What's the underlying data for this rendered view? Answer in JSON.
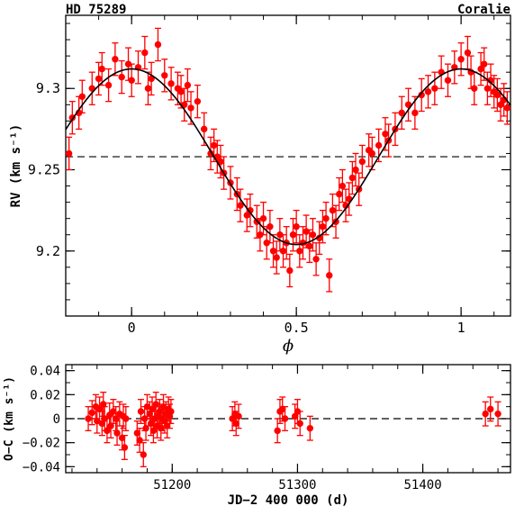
{
  "header": {
    "left": "HD 75289",
    "right": "Coralie"
  },
  "chart_data": [
    {
      "type": "scatter",
      "panel": "radial-velocity-phase",
      "xlabel": "ϕ",
      "ylabel": "RV (km s⁻¹)",
      "xlim": [
        -0.2,
        1.15
      ],
      "ylim": [
        9.16,
        9.345
      ],
      "xticks": [
        0,
        0.5,
        1
      ],
      "xtick_labels": [
        "0",
        "0.5",
        "1"
      ],
      "yticks": [
        9.2,
        9.25,
        9.3
      ],
      "ytick_labels": [
        "9.2",
        "9.25",
        "9.3"
      ],
      "grid": false,
      "colors": {
        "points": "#ff0000",
        "model": "#000000"
      },
      "model": {
        "type": "sinusoid",
        "mean": 9.258,
        "amplitude": 0.054,
        "phase_of_max": 0.0
      },
      "reference_line": {
        "y": 9.258,
        "style": "dashed"
      },
      "series": [
        {
          "points": [
            [
              -0.19,
              9.26,
              0.01
            ],
            [
              -0.18,
              9.282,
              0.01
            ],
            [
              -0.16,
              9.285,
              0.01
            ],
            [
              -0.15,
              9.295,
              0.01
            ],
            [
              -0.12,
              9.3,
              0.01
            ],
            [
              -0.1,
              9.306,
              0.01
            ],
            [
              -0.09,
              9.312,
              0.01
            ],
            [
              -0.07,
              9.302,
              0.01
            ],
            [
              -0.05,
              9.318,
              0.01
            ],
            [
              -0.03,
              9.307,
              0.01
            ],
            [
              -0.01,
              9.315,
              0.01
            ],
            [
              0.0,
              9.305,
              0.01
            ],
            [
              0.02,
              9.313,
              0.01
            ],
            [
              0.04,
              9.322,
              0.01
            ],
            [
              0.05,
              9.3,
              0.01
            ],
            [
              0.06,
              9.306,
              0.01
            ],
            [
              0.08,
              9.327,
              0.01
            ],
            [
              0.1,
              9.308,
              0.01
            ],
            [
              0.12,
              9.303,
              0.01
            ],
            [
              0.14,
              9.3,
              0.01
            ],
            [
              0.15,
              9.298,
              0.01
            ],
            [
              0.16,
              9.29,
              0.01
            ],
            [
              0.17,
              9.302,
              0.01
            ],
            [
              0.18,
              9.288,
              0.01
            ],
            [
              0.2,
              9.292,
              0.01
            ],
            [
              0.22,
              9.275,
              0.01
            ],
            [
              0.24,
              9.26,
              0.01
            ],
            [
              0.25,
              9.265,
              0.01
            ],
            [
              0.26,
              9.258,
              0.01
            ],
            [
              0.27,
              9.255,
              0.01
            ],
            [
              0.28,
              9.248,
              0.01
            ],
            [
              0.3,
              9.242,
              0.01
            ],
            [
              0.32,
              9.235,
              0.01
            ],
            [
              0.33,
              9.228,
              0.01
            ],
            [
              0.35,
              9.222,
              0.01
            ],
            [
              0.36,
              9.225,
              0.01
            ],
            [
              0.38,
              9.218,
              0.01
            ],
            [
              0.39,
              9.21,
              0.01
            ],
            [
              0.4,
              9.22,
              0.01
            ],
            [
              0.41,
              9.205,
              0.01
            ],
            [
              0.42,
              9.215,
              0.01
            ],
            [
              0.43,
              9.2,
              0.01
            ],
            [
              0.44,
              9.196,
              0.01
            ],
            [
              0.45,
              9.21,
              0.01
            ],
            [
              0.46,
              9.2,
              0.01
            ],
            [
              0.47,
              9.205,
              0.01
            ],
            [
              0.48,
              9.188,
              0.01
            ],
            [
              0.49,
              9.21,
              0.01
            ],
            [
              0.5,
              9.215,
              0.01
            ],
            [
              0.51,
              9.2,
              0.01
            ],
            [
              0.52,
              9.205,
              0.01
            ],
            [
              0.53,
              9.212,
              0.01
            ],
            [
              0.54,
              9.203,
              0.01
            ],
            [
              0.55,
              9.21,
              0.01
            ],
            [
              0.56,
              9.195,
              0.01
            ],
            [
              0.57,
              9.208,
              0.01
            ],
            [
              0.58,
              9.215,
              0.01
            ],
            [
              0.59,
              9.22,
              0.01
            ],
            [
              0.6,
              9.185,
              0.01
            ],
            [
              0.61,
              9.225,
              0.01
            ],
            [
              0.62,
              9.218,
              0.01
            ],
            [
              0.63,
              9.235,
              0.01
            ],
            [
              0.64,
              9.24,
              0.01
            ],
            [
              0.65,
              9.228,
              0.01
            ],
            [
              0.66,
              9.232,
              0.01
            ],
            [
              0.67,
              9.245,
              0.01
            ],
            [
              0.68,
              9.25,
              0.01
            ],
            [
              0.69,
              9.238,
              0.01
            ],
            [
              0.7,
              9.255,
              0.01
            ],
            [
              0.72,
              9.262,
              0.01
            ],
            [
              0.73,
              9.26,
              0.01
            ],
            [
              0.75,
              9.265,
              0.01
            ],
            [
              0.77,
              9.272,
              0.01
            ],
            [
              0.78,
              9.268,
              0.01
            ],
            [
              0.8,
              9.275,
              0.01
            ],
            [
              0.82,
              9.285,
              0.01
            ],
            [
              0.84,
              9.29,
              0.01
            ],
            [
              0.86,
              9.285,
              0.01
            ],
            [
              0.88,
              9.296,
              0.01
            ],
            [
              0.9,
              9.298,
              0.01
            ],
            [
              0.92,
              9.3,
              0.01
            ],
            [
              0.94,
              9.31,
              0.01
            ],
            [
              0.96,
              9.305,
              0.01
            ],
            [
              0.98,
              9.313,
              0.01
            ],
            [
              1.0,
              9.318,
              0.01
            ],
            [
              1.02,
              9.322,
              0.01
            ],
            [
              1.03,
              9.31,
              0.01
            ],
            [
              1.04,
              9.3,
              0.01
            ],
            [
              1.06,
              9.312,
              0.01
            ],
            [
              1.07,
              9.315,
              0.01
            ],
            [
              1.08,
              9.3,
              0.01
            ],
            [
              1.09,
              9.305,
              0.01
            ],
            [
              1.1,
              9.298,
              0.01
            ],
            [
              1.11,
              9.296,
              0.01
            ],
            [
              1.12,
              9.29,
              0.01
            ],
            [
              1.13,
              9.293,
              0.01
            ],
            [
              1.14,
              9.288,
              0.01
            ]
          ]
        }
      ]
    },
    {
      "type": "scatter",
      "panel": "residuals-time",
      "xlabel": "JD−2 400 000 (d)",
      "ylabel": "O−C (km s⁻¹)",
      "xlim": [
        51115,
        51470
      ],
      "ylim": [
        -0.045,
        0.045
      ],
      "xticks": [
        51200,
        51300,
        51400
      ],
      "xtick_labels": [
        "51200",
        "51300",
        "51400"
      ],
      "yticks": [
        -0.04,
        -0.02,
        0,
        0.02,
        0.04
      ],
      "ytick_labels": [
        "−0.04",
        "−0.02",
        "0",
        "0.02",
        "0.04"
      ],
      "grid": false,
      "colors": {
        "points": "#ff0000"
      },
      "reference_line": {
        "y": 0,
        "style": "dashed"
      },
      "series": [
        {
          "points": [
            [
              51133,
              0.0,
              0.01
            ],
            [
              51136,
              0.005,
              0.01
            ],
            [
              51139,
              0.01,
              0.01
            ],
            [
              51140,
              -0.002,
              0.01
            ],
            [
              51142,
              0.008,
              0.01
            ],
            [
              51144,
              -0.004,
              0.01
            ],
            [
              51145,
              0.012,
              0.01
            ],
            [
              51146,
              0.0,
              0.01
            ],
            [
              51148,
              -0.01,
              0.01
            ],
            [
              51150,
              0.003,
              0.01
            ],
            [
              51151,
              -0.006,
              0.01
            ],
            [
              51153,
              0.006,
              0.01
            ],
            [
              51155,
              0.0,
              0.01
            ],
            [
              51156,
              -0.012,
              0.01
            ],
            [
              51158,
              0.004,
              0.01
            ],
            [
              51160,
              -0.016,
              0.01
            ],
            [
              51161,
              0.002,
              0.01
            ],
            [
              51162,
              -0.024,
              0.01
            ],
            [
              51163,
              0.0,
              0.01
            ],
            [
              51172,
              -0.012,
              0.01
            ],
            [
              51174,
              -0.018,
              0.01
            ],
            [
              51175,
              0.006,
              0.01
            ],
            [
              51177,
              -0.03,
              0.01
            ],
            [
              51178,
              0.0,
              0.01
            ],
            [
              51179,
              -0.008,
              0.01
            ],
            [
              51180,
              0.01,
              0.01
            ],
            [
              51182,
              0.004,
              0.01
            ],
            [
              51183,
              -0.004,
              0.01
            ],
            [
              51184,
              0.008,
              0.01
            ],
            [
              51185,
              -0.01,
              0.01
            ],
            [
              51186,
              0.0,
              0.01
            ],
            [
              51187,
              0.012,
              0.01
            ],
            [
              51188,
              -0.006,
              0.01
            ],
            [
              51189,
              0.002,
              0.01
            ],
            [
              51190,
              0.006,
              0.01
            ],
            [
              51191,
              -0.008,
              0.01
            ],
            [
              51192,
              0.0,
              0.01
            ],
            [
              51193,
              0.01,
              0.01
            ],
            [
              51194,
              -0.002,
              0.01
            ],
            [
              51195,
              0.004,
              0.01
            ],
            [
              51196,
              -0.006,
              0.01
            ],
            [
              51197,
              0.008,
              0.01
            ],
            [
              51198,
              0.002,
              0.01
            ],
            [
              51199,
              0.006,
              0.01
            ],
            [
              51248,
              0.0,
              0.01
            ],
            [
              51250,
              0.004,
              0.01
            ],
            [
              51251,
              -0.004,
              0.01
            ],
            [
              51253,
              0.002,
              0.01
            ],
            [
              51284,
              -0.01,
              0.01
            ],
            [
              51286,
              0.006,
              0.01
            ],
            [
              51288,
              0.008,
              0.01
            ],
            [
              51290,
              0.0,
              0.01
            ],
            [
              51298,
              0.002,
              0.01
            ],
            [
              51300,
              0.006,
              0.01
            ],
            [
              51302,
              -0.004,
              0.01
            ],
            [
              51310,
              -0.008,
              0.01
            ],
            [
              51450,
              0.004,
              0.01
            ],
            [
              51454,
              0.008,
              0.01
            ],
            [
              51460,
              0.004,
              0.01
            ]
          ]
        }
      ]
    }
  ]
}
